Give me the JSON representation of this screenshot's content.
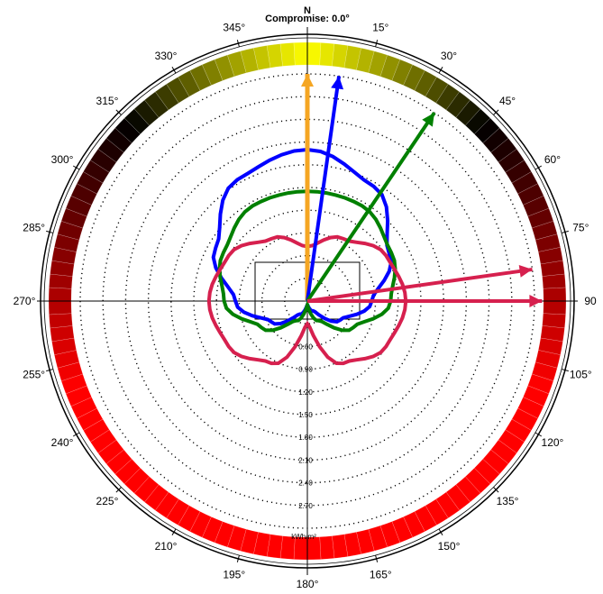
{
  "title": "Compromise: 0.0°",
  "north_label": "N",
  "colors": {
    "background": "#ffffff",
    "axis": "#000000",
    "ring_gradient": [
      "#ffff00",
      "#000000",
      "#ff0000"
    ],
    "orange_line": "#f5a623",
    "blue": "#0000ff",
    "green": "#008000",
    "crimson": "#d6204e"
  },
  "chart_data": {
    "type": "polar",
    "angle_ticks": [
      "345°",
      "15°",
      "30°",
      "45°",
      "60°",
      "75°",
      "90",
      "105°",
      "120°",
      "135°",
      "150°",
      "165°",
      "180°",
      "195°",
      "210°",
      "225°",
      "240°",
      "255°",
      "270°",
      "285°",
      "300°",
      "315°",
      "330°"
    ],
    "angle_tick_values": [
      345,
      15,
      30,
      45,
      60,
      75,
      90,
      105,
      120,
      135,
      150,
      165,
      180,
      195,
      210,
      225,
      240,
      255,
      270,
      285,
      300,
      315,
      330
    ],
    "radial_labels": [
      "0.60",
      "0.90",
      "1.20",
      "1.50",
      "1.80",
      "2.10",
      "2.40",
      "2.70"
    ],
    "radial_unit": "kWh/m²",
    "r_step": 0.3,
    "r_max": 3.0,
    "arrows": [
      {
        "color": "orange",
        "angle_deg": 0,
        "r": 3.0
      },
      {
        "color": "blue",
        "angle_deg": 8,
        "r": 3.0
      },
      {
        "color": "green",
        "angle_deg": 34,
        "r": 3.0
      },
      {
        "color": "crimson",
        "angle_deg": 82,
        "r": 3.0
      },
      {
        "color": "crimson",
        "angle_deg": 90,
        "r": 3.1
      }
    ],
    "series": [
      {
        "color": "blue",
        "shape": "cardioid-ish",
        "angles": [
          0,
          30,
          60,
          90,
          120,
          150,
          180,
          210,
          240,
          270,
          300,
          330
        ],
        "values": [
          2.0,
          1.75,
          1.25,
          0.85,
          0.5,
          0.15,
          0.05,
          0.2,
          0.55,
          0.95,
          1.4,
          1.85
        ]
      },
      {
        "color": "green",
        "shape": "circle",
        "angles": [
          0,
          30,
          60,
          90,
          120,
          150,
          180,
          210,
          240,
          270,
          300,
          330
        ],
        "values": [
          1.45,
          1.45,
          1.28,
          1.1,
          0.7,
          0.3,
          0.05,
          0.3,
          0.7,
          1.1,
          1.28,
          1.45
        ]
      },
      {
        "color": "crimson",
        "shape": "figure-eight",
        "angles": [
          0,
          30,
          60,
          90,
          120,
          150,
          180,
          210,
          240,
          270,
          300,
          330
        ],
        "values": [
          0.72,
          0.95,
          1.2,
          1.3,
          1.2,
          0.95,
          0.3,
          0.95,
          1.2,
          1.3,
          1.2,
          0.95
        ]
      }
    ],
    "rect_reference": {
      "label": ""
    }
  }
}
